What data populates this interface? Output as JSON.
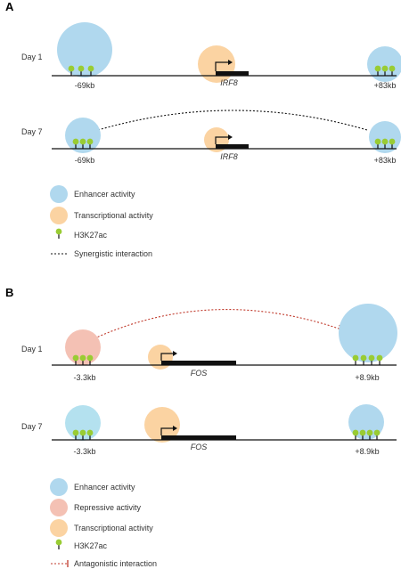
{
  "colors": {
    "enhancer": "#b0d8ee",
    "transcription": "#fbd3a2",
    "repressive": "#f4c1b4",
    "enhancer_light": "#b4e1ef",
    "h3k27ac": "#99cc33",
    "antagonistic": "#c0392b",
    "line": "#111111"
  },
  "panelA": {
    "label": "A",
    "day1": {
      "label": "Day 1",
      "left_pos": "-69kb",
      "right_pos": "+83kb",
      "gene": "IRF8"
    },
    "day7": {
      "label": "Day 7",
      "left_pos": "-69kb",
      "right_pos": "+83kb",
      "gene": "IRF8"
    },
    "legend": {
      "enhancer": "Enhancer activity",
      "transcription": "Transcriptional activity",
      "h3k27ac": "H3K27ac",
      "synergistic": "Synergistic interaction"
    }
  },
  "panelB": {
    "label": "B",
    "day1": {
      "label": "Day 1",
      "left_pos": "-3.3kb",
      "right_pos": "+8.9kb",
      "gene": "FOS"
    },
    "day7": {
      "label": "Day 7",
      "left_pos": "-3.3kb",
      "right_pos": "+8.9kb",
      "gene": "FOS"
    },
    "legend": {
      "enhancer": "Enhancer activity",
      "repressive": "Repressive activity",
      "transcription": "Transcriptional activity",
      "h3k27ac": "H3K27ac",
      "antagonistic": "Antagonistic interaction"
    }
  }
}
